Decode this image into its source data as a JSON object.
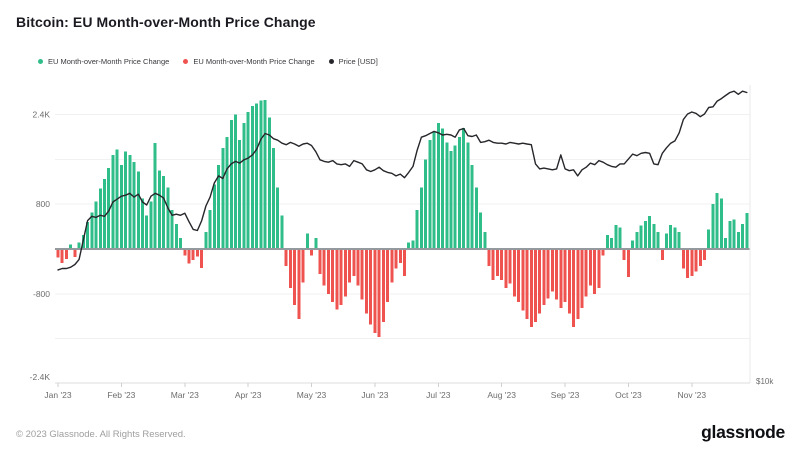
{
  "page": {
    "title": "Bitcoin: EU Month-over-Month Price Change",
    "footer_copyright": "© 2023 Glassnode. All Rights Reserved.",
    "brand_logo": "glassnode"
  },
  "legend": {
    "position": "top",
    "items": [
      {
        "label": "EU Month-over-Month Price Change",
        "color": "#2fbd8a"
      },
      {
        "label": "EU Month-over-Month Price Change",
        "color": "#ef5350"
      },
      {
        "label": "Price [USD]",
        "color": "#26262b"
      }
    ]
  },
  "chart_data": {
    "type": "bar+line",
    "title": "Bitcoin: EU Month-over-Month Price Change",
    "grid": true,
    "legend_position": "top",
    "series": [
      {
        "name": "EU Month-over-Month Price Change",
        "type": "bar",
        "polarity": "positive",
        "color": "#2fbd8a",
        "axis": "left"
      },
      {
        "name": "EU Month-over-Month Price Change",
        "type": "bar",
        "polarity": "negative",
        "color": "#ef5350",
        "axis": "left"
      },
      {
        "name": "Price [USD]",
        "type": "line",
        "color": "#26262b",
        "axis": "right"
      }
    ],
    "x_axis": {
      "tick_labels": [
        "Jan '23",
        "Feb '23",
        "Mar '23",
        "Apr '23",
        "May '23",
        "Jun '23",
        "Jul '23",
        "Aug '23",
        "Sep '23",
        "Oct '23",
        "Nov '23"
      ],
      "range": [
        "2023-01-01",
        "2023-11-27"
      ]
    },
    "left_axis": {
      "ticks": [
        {
          "label": "2.4K",
          "value": 2400
        },
        {
          "label": "800",
          "value": 800
        },
        {
          "label": "-800",
          "value": -800
        },
        {
          "label": "-2.4K",
          "value": -2400
        }
      ],
      "gridline_values": [
        2400,
        1600,
        800,
        -800,
        -1600
      ],
      "range": [
        -2400,
        2800
      ]
    },
    "right_axis": {
      "label": "$10k",
      "scale": "log",
      "visible_range_usd": [
        10000,
        37000
      ]
    },
    "zero_line_color": "#94999d",
    "mom_change_usd": [
      -150,
      -250,
      -180,
      80,
      -140,
      120,
      250,
      480,
      650,
      850,
      1080,
      1250,
      1450,
      1680,
      1780,
      1500,
      1740,
      1680,
      1550,
      1380,
      900,
      600,
      850,
      1890,
      1400,
      1300,
      1100,
      700,
      450,
      200,
      -120,
      -260,
      -200,
      -130,
      -340,
      300,
      700,
      1150,
      1500,
      1800,
      2000,
      2300,
      2400,
      1950,
      2250,
      2450,
      2550,
      2600,
      2650,
      2660,
      2350,
      1800,
      1100,
      600,
      -300,
      -700,
      -1000,
      -1250,
      -600,
      280,
      -120,
      200,
      -450,
      -650,
      -800,
      -950,
      -1080,
      -1000,
      -850,
      -600,
      -480,
      -650,
      -900,
      -1150,
      -1350,
      -1500,
      -1570,
      -1300,
      -950,
      -600,
      -350,
      -250,
      -480,
      120,
      150,
      700,
      1100,
      1600,
      1950,
      2100,
      2250,
      2150,
      1900,
      1750,
      1850,
      2000,
      2160,
      1900,
      1500,
      1100,
      650,
      300,
      -300,
      -550,
      -480,
      -550,
      -700,
      -620,
      -850,
      -950,
      -1100,
      -1250,
      -1390,
      -1300,
      -1150,
      -1000,
      -880,
      -760,
      -900,
      -1050,
      -950,
      -1150,
      -1390,
      -1250,
      -1050,
      -850,
      -650,
      -800,
      -700,
      -120,
      250,
      200,
      430,
      380,
      -200,
      -500,
      150,
      300,
      420,
      500,
      590,
      450,
      300,
      -200,
      280,
      430,
      380,
      300,
      -350,
      -520,
      -480,
      -400,
      -300,
      -200,
      350,
      800,
      1000,
      900,
      200,
      500,
      530,
      300,
      450,
      640
    ],
    "price_usd_thousands": [
      16.5,
      16.6,
      16.6,
      16.7,
      16.9,
      17.3,
      18.9,
      20.6,
      21.0,
      20.9,
      21.1,
      21.0,
      21.5,
      22.4,
      22.7,
      23.0,
      23.1,
      23.3,
      22.9,
      23.2,
      22.4,
      22.1,
      23.0,
      23.3,
      23.1,
      22.8,
      21.8,
      21.1,
      21.2,
      21.1,
      21.3,
      20.5,
      19.8,
      19.7,
      20.6,
      22.0,
      22.9,
      24.4,
      25.2,
      24.9,
      26.0,
      26.6,
      26.9,
      26.7,
      27.1,
      27.3,
      27.7,
      28.4,
      29.7,
      30.5,
      30.3,
      29.8,
      29.6,
      29.2,
      29.0,
      29.3,
      29.1,
      28.8,
      29.1,
      29.2,
      28.9,
      28.1,
      27.1,
      26.9,
      26.8,
      27.0,
      26.6,
      26.5,
      26.6,
      26.3,
      27.0,
      26.8,
      26.6,
      25.9,
      25.7,
      25.9,
      26.2,
      25.8,
      25.6,
      25.5,
      25.2,
      25.4,
      25.0,
      25.6,
      26.3,
      28.3,
      30.0,
      30.2,
      30.5,
      30.8,
      30.6,
      30.3,
      30.4,
      30.3,
      30.0,
      31.0,
      31.2,
      30.2,
      30.1,
      30.3,
      29.3,
      29.4,
      29.6,
      29.3,
      29.2,
      29.2,
      29.1,
      29.3,
      29.2,
      29.1,
      29.2,
      29.1,
      29.0,
      26.6,
      26.0,
      26.1,
      26.0,
      25.9,
      26.0,
      27.7,
      26.0,
      25.8,
      25.9,
      25.2,
      25.9,
      26.2,
      26.7,
      26.5,
      27.0,
      26.8,
      26.5,
      26.3,
      26.2,
      26.6,
      26.6,
      27.2,
      27.8,
      27.6,
      27.9,
      28.0,
      27.9,
      26.6,
      26.5,
      27.9,
      28.6,
      29.2,
      29.5,
      30.6,
      32.5,
      33.3,
      33.6,
      33.4,
      32.9,
      33.3,
      34.3,
      34.4,
      35.3,
      35.7,
      36.2,
      36.7,
      36.9,
      36.4,
      36.9,
      36.7
    ]
  }
}
